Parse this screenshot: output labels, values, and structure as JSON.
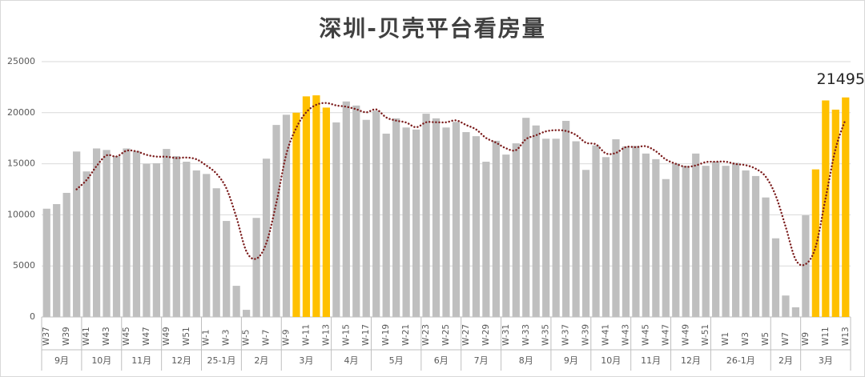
{
  "chart_data": {
    "type": "bar",
    "title": "深圳-贝壳平台看房量",
    "categories": [
      "W37",
      null,
      "W39",
      null,
      "W41",
      null,
      "W43",
      null,
      "W45",
      null,
      "W47",
      null,
      "W49",
      null,
      "W51",
      null,
      "W-1",
      null,
      "W-3",
      null,
      "W-5",
      null,
      "W-7",
      null,
      "W-9",
      null,
      "W-11",
      null,
      "W-13",
      null,
      "W-15",
      null,
      "W-17",
      null,
      "W-19",
      null,
      "W-21",
      null,
      "W-23",
      null,
      "W-25",
      null,
      "W-27",
      null,
      "W-29",
      null,
      "W-31",
      null,
      "W-33",
      null,
      "W-35",
      null,
      "W-37",
      null,
      "W-39",
      null,
      "W-41",
      null,
      "W-43",
      null,
      "W-45",
      null,
      "W-47",
      null,
      "W-49",
      null,
      "W-51",
      null,
      "W1",
      null,
      "W3",
      null,
      "W5",
      null,
      "W7",
      null,
      "W9",
      null,
      "W11",
      null,
      "W13"
    ],
    "values": [
      10600,
      11050,
      12150,
      16200,
      14250,
      16500,
      16350,
      15750,
      16500,
      16250,
      15000,
      15050,
      16450,
      15750,
      15200,
      14350,
      14000,
      12600,
      9400,
      3050,
      700,
      9700,
      15500,
      18800,
      19800,
      20000,
      21600,
      21700,
      20500,
      19050,
      21100,
      20700,
      19300,
      20200,
      17950,
      19450,
      18550,
      18350,
      19900,
      19450,
      18550,
      19100,
      18100,
      17700,
      15200,
      17250,
      15900,
      17000,
      19500,
      18750,
      17450,
      17450,
      19200,
      17200,
      14400,
      16800,
      15650,
      17400,
      16700,
      16750,
      16000,
      15450,
      13500,
      15050,
      14800,
      16000,
      14800,
      15200,
      14800,
      15100,
      14350,
      13800,
      11700,
      7700,
      2100,
      950,
      9950,
      14450,
      21200,
      20300,
      21495
    ],
    "value_labels": [
      null,
      null,
      null,
      null,
      null,
      null,
      null,
      null,
      null,
      null,
      null,
      null,
      null,
      null,
      null,
      null,
      null,
      null,
      null,
      null,
      null,
      null,
      null,
      null,
      null,
      null,
      null,
      null,
      null,
      null,
      null,
      null,
      null,
      null,
      null,
      null,
      null,
      null,
      null,
      null,
      null,
      null,
      null,
      null,
      null,
      null,
      null,
      null,
      null,
      null,
      null,
      null,
      null,
      null,
      null,
      null,
      null,
      null,
      null,
      null,
      null,
      null,
      null,
      null,
      null,
      null,
      null,
      null,
      null,
      null,
      null,
      null,
      null,
      null,
      null,
      null,
      null,
      null,
      null,
      null,
      "21495"
    ],
    "colors": [
      "#bfbfbf",
      "#bfbfbf",
      "#bfbfbf",
      "#bfbfbf",
      "#bfbfbf",
      "#bfbfbf",
      "#bfbfbf",
      "#bfbfbf",
      "#bfbfbf",
      "#bfbfbf",
      "#bfbfbf",
      "#bfbfbf",
      "#bfbfbf",
      "#bfbfbf",
      "#bfbfbf",
      "#bfbfbf",
      "#bfbfbf",
      "#bfbfbf",
      "#bfbfbf",
      "#bfbfbf",
      "#bfbfbf",
      "#bfbfbf",
      "#bfbfbf",
      "#bfbfbf",
      "#bfbfbf",
      "#ffc000",
      "#ffc000",
      "#ffc000",
      "#ffc000",
      "#bfbfbf",
      "#bfbfbf",
      "#bfbfbf",
      "#bfbfbf",
      "#bfbfbf",
      "#bfbfbf",
      "#bfbfbf",
      "#bfbfbf",
      "#bfbfbf",
      "#bfbfbf",
      "#bfbfbf",
      "#bfbfbf",
      "#bfbfbf",
      "#bfbfbf",
      "#bfbfbf",
      "#bfbfbf",
      "#bfbfbf",
      "#bfbfbf",
      "#bfbfbf",
      "#bfbfbf",
      "#bfbfbf",
      "#bfbfbf",
      "#bfbfbf",
      "#bfbfbf",
      "#bfbfbf",
      "#bfbfbf",
      "#bfbfbf",
      "#bfbfbf",
      "#bfbfbf",
      "#bfbfbf",
      "#bfbfbf",
      "#bfbfbf",
      "#bfbfbf",
      "#bfbfbf",
      "#bfbfbf",
      "#bfbfbf",
      "#bfbfbf",
      "#bfbfbf",
      "#bfbfbf",
      "#bfbfbf",
      "#bfbfbf",
      "#bfbfbf",
      "#bfbfbf",
      "#bfbfbf",
      "#bfbfbf",
      "#bfbfbf",
      "#bfbfbf",
      "#bfbfbf",
      "#ffc000",
      "#ffc000",
      "#ffc000",
      "#ffc000"
    ],
    "groups": [
      {
        "label": "9月",
        "count": 4
      },
      {
        "label": "10月",
        "count": 4
      },
      {
        "label": "11月",
        "count": 4
      },
      {
        "label": "12月",
        "count": 4
      },
      {
        "label": "25-1月",
        "count": 4
      },
      {
        "label": "2月",
        "count": 4
      },
      {
        "label": "3月",
        "count": 5
      },
      {
        "label": "4月",
        "count": 4
      },
      {
        "label": "5月",
        "count": 5
      },
      {
        "label": "6月",
        "count": 4
      },
      {
        "label": "7月",
        "count": 4
      },
      {
        "label": "8月",
        "count": 5
      },
      {
        "label": "9月",
        "count": 4
      },
      {
        "label": "10月",
        "count": 4
      },
      {
        "label": "11月",
        "count": 4
      },
      {
        "label": "12月",
        "count": 4
      },
      {
        "label": "26-1月",
        "count": 6
      },
      {
        "label": "2月",
        "count": 3
      },
      {
        "label": "3月",
        "count": 5
      }
    ],
    "trendline": {
      "type": "moving_average",
      "period": 4,
      "color": "#7b1c1c"
    },
    "ylim": [
      0,
      25000
    ],
    "yticks": [
      0,
      5000,
      10000,
      15000,
      20000,
      25000
    ],
    "grid": true
  }
}
